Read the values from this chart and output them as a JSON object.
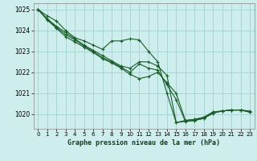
{
  "title": "Graphe pression niveau de la mer (hPa)",
  "background_color": "#ceeeed",
  "grid_color": "#aad4d4",
  "line_color": "#1a5c2a",
  "xlim": [
    -0.5,
    23.5
  ],
  "ylim": [
    1019.3,
    1025.3
  ],
  "yticks": [
    1020,
    1021,
    1022,
    1023,
    1024,
    1025
  ],
  "xticks": [
    0,
    1,
    2,
    3,
    4,
    5,
    6,
    7,
    8,
    9,
    10,
    11,
    12,
    13,
    14,
    15,
    16,
    17,
    18,
    19,
    20,
    21,
    22,
    23
  ],
  "series": [
    [
      1025.0,
      1024.7,
      1024.45,
      1024.0,
      1023.65,
      1023.5,
      1023.3,
      1023.1,
      1023.5,
      1023.5,
      1023.6,
      1023.55,
      1023.0,
      1022.5,
      1021.0,
      1019.6,
      1019.7,
      1019.75,
      1019.85,
      1020.1,
      1020.15,
      1020.2,
      1020.2,
      1020.15
    ],
    [
      1025.0,
      1024.55,
      1024.2,
      1023.9,
      1023.6,
      1023.3,
      1023.05,
      1022.8,
      1022.55,
      1022.3,
      1022.2,
      1022.5,
      1022.5,
      1022.3,
      1021.85,
      1019.6,
      1019.65,
      1019.7,
      1019.8,
      1020.05,
      1020.15,
      1020.2,
      1020.2,
      1020.1
    ],
    [
      1025.0,
      1024.55,
      1024.15,
      1023.8,
      1023.55,
      1023.25,
      1023.0,
      1022.7,
      1022.5,
      1022.25,
      1022.0,
      1022.4,
      1022.2,
      1022.1,
      1021.4,
      1020.7,
      1019.65,
      1019.7,
      1019.8,
      1020.05,
      1020.15,
      1020.2,
      1020.2,
      1020.1
    ],
    [
      1025.0,
      1024.5,
      1024.1,
      1023.7,
      1023.45,
      1023.2,
      1022.95,
      1022.65,
      1022.45,
      1022.2,
      1021.9,
      1021.7,
      1021.8,
      1022.0,
      1021.5,
      1021.0,
      1019.7,
      1019.75,
      1019.85,
      1020.1,
      1020.15,
      1020.2,
      1020.2,
      1020.1
    ]
  ]
}
